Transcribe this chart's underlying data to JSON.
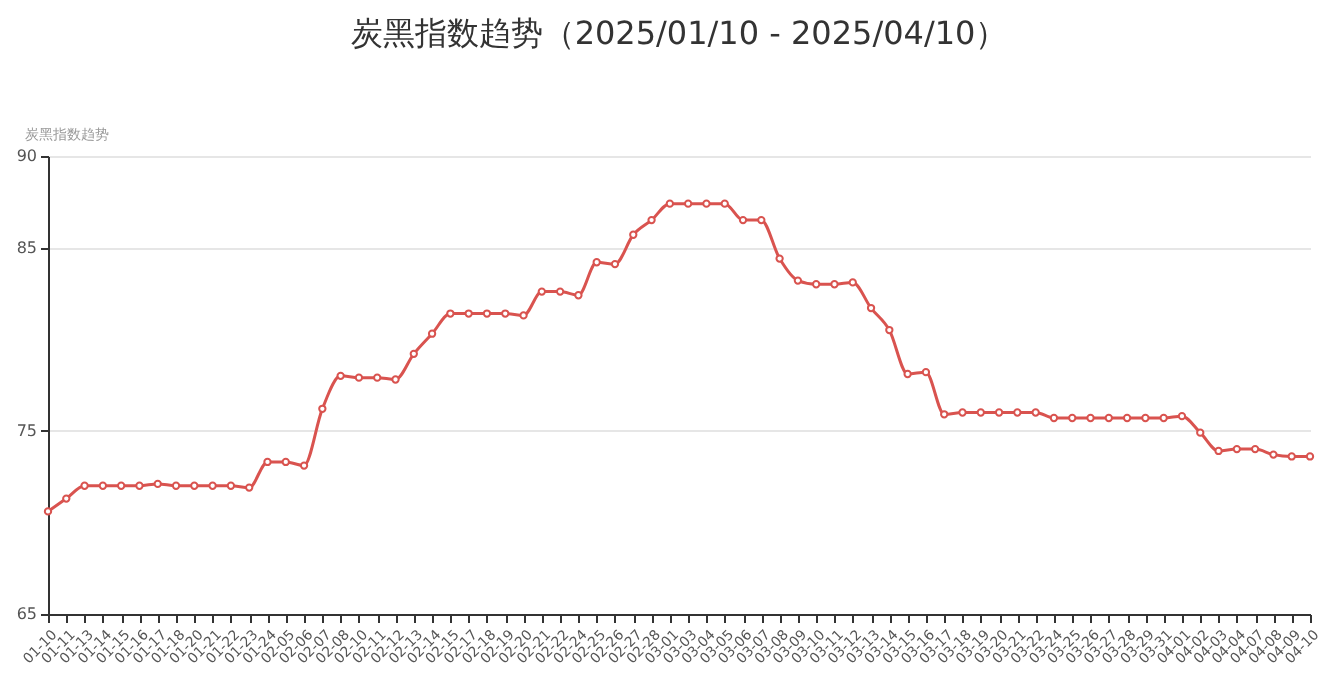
{
  "chart_data": {
    "type": "line",
    "title": "炭黑指数趋势（2025/01/10 - 2025/04/10）",
    "ylabel": "炭黑指数趋势",
    "categories": [
      "01-10",
      "01-11",
      "01-13",
      "01-14",
      "01-15",
      "01-16",
      "01-17",
      "01-18",
      "01-20",
      "01-21",
      "01-22",
      "01-23",
      "01-24",
      "02-05",
      "02-06",
      "02-07",
      "02-08",
      "02-10",
      "02-11",
      "02-12",
      "02-13",
      "02-14",
      "02-15",
      "02-17",
      "02-18",
      "02-19",
      "02-20",
      "02-21",
      "02-22",
      "02-24",
      "02-25",
      "02-26",
      "02-27",
      "02-28",
      "03-01",
      "03-03",
      "03-04",
      "03-05",
      "03-06",
      "03-07",
      "03-08",
      "03-09",
      "03-10",
      "03-11",
      "03-12",
      "03-13",
      "03-14",
      "03-15",
      "03-16",
      "03-17",
      "03-18",
      "03-19",
      "03-20",
      "03-21",
      "03-22",
      "03-24",
      "03-25",
      "03-26",
      "03-27",
      "03-28",
      "03-29",
      "03-31",
      "04-01",
      "04-02",
      "04-03",
      "04-04",
      "04-07",
      "04-08",
      "04-09",
      "04-10"
    ],
    "series": [
      {
        "color": "#d9534f",
        "values": [
          70.6,
          71.3,
          72.0,
          72.0,
          72.0,
          72.0,
          72.1,
          72.0,
          72.0,
          72.0,
          72.0,
          71.9,
          73.3,
          73.3,
          73.1,
          76.2,
          78.0,
          77.9,
          77.9,
          77.8,
          79.2,
          80.3,
          81.4,
          81.4,
          81.4,
          81.4,
          81.3,
          82.6,
          82.6,
          82.4,
          84.2,
          84.1,
          85.7,
          86.5,
          87.4,
          87.4,
          87.4,
          87.4,
          86.5,
          86.5,
          84.4,
          83.2,
          83.0,
          83.0,
          83.1,
          81.7,
          80.5,
          78.1,
          78.2,
          75.9,
          76.0,
          76.0,
          76.0,
          76.0,
          76.0,
          75.7,
          75.7,
          75.7,
          75.7,
          75.7,
          75.7,
          75.7,
          75.8,
          74.9,
          73.9,
          74.0,
          74.0,
          73.7,
          73.6,
          73.6
        ]
      }
    ],
    "ylim": [
      65,
      90
    ],
    "yticks": [
      65,
      75,
      85,
      90
    ],
    "grid": "y",
    "marker": "circle",
    "line_style": "solid",
    "legend": false
  }
}
